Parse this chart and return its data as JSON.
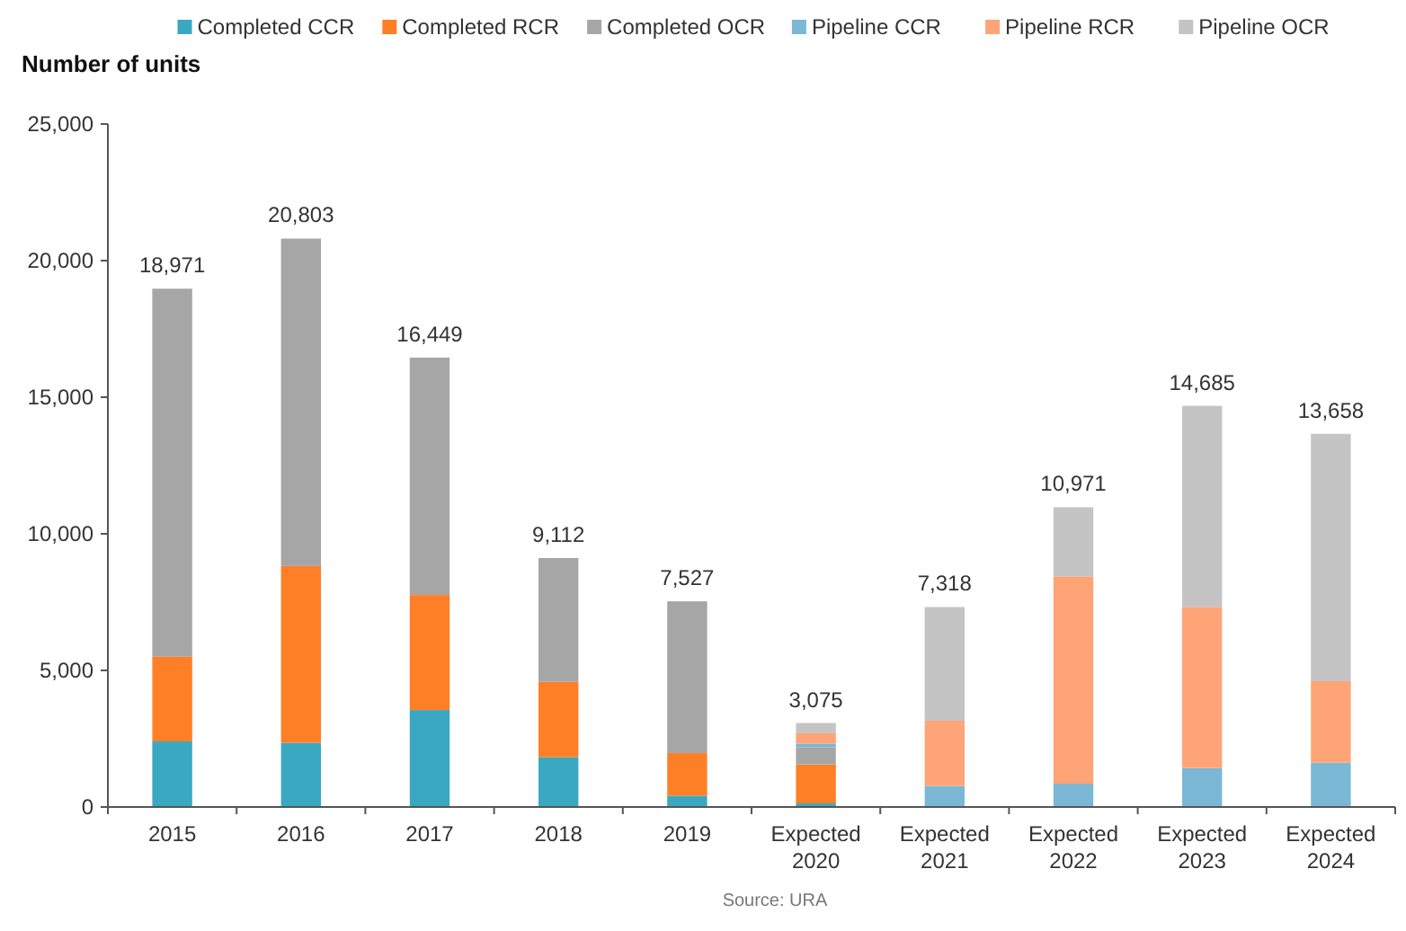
{
  "chart_data": {
    "type": "bar",
    "stacked": true,
    "ylabel": "Number of units",
    "categories": [
      "2015",
      "2016",
      "2017",
      "2018",
      "2019",
      "Expected 2020",
      "Expected 2021",
      "Expected 2022",
      "Expected 2023",
      "Expected 2024"
    ],
    "series": [
      {
        "name": "Completed CCR",
        "color": "#3aa8c1",
        "values": [
          2400,
          2350,
          3550,
          1820,
          415,
          130,
          null,
          null,
          null,
          null
        ]
      },
      {
        "name": "Completed RCR",
        "color": "#ff7f27",
        "values": [
          3100,
          6470,
          4210,
          2765,
          1560,
          1430,
          null,
          null,
          null,
          null
        ]
      },
      {
        "name": "Completed OCR",
        "color": "#a6a6a6",
        "values": [
          13471,
          11986,
          8689,
          4527,
          5553,
          630,
          null,
          null,
          null,
          null
        ]
      },
      {
        "name": "Pipeline CCR",
        "color": "#7ab8d6",
        "values": [
          null,
          null,
          null,
          null,
          null,
          130,
          770,
          855,
          1425,
          1623
        ]
      },
      {
        "name": "Pipeline RCR",
        "color": "#ffa476",
        "values": [
          null,
          null,
          null,
          null,
          null,
          380,
          2390,
          7587,
          5900,
          2983
        ]
      },
      {
        "name": "Pipeline OCR",
        "color": "#c4c4c4",
        "values": [
          null,
          null,
          null,
          null,
          null,
          375,
          4160,
          2529,
          7360,
          9052
        ]
      }
    ],
    "totals": [
      "18,971",
      "20,803",
      "16,449",
      "9,112",
      "7,527",
      "3,075",
      "7,318",
      "10,971",
      "14,685",
      "13,658"
    ],
    "ylim": [
      0,
      25000
    ],
    "yticks": [
      {
        "value": 0,
        "label": "0"
      },
      {
        "value": 5000,
        "label": "5,000"
      },
      {
        "value": 10000,
        "label": "10,000"
      },
      {
        "value": 15000,
        "label": "15,000"
      },
      {
        "value": 20000,
        "label": "20,000"
      },
      {
        "value": 25000,
        "label": "25,000"
      }
    ],
    "legend": "top",
    "grid": false,
    "annotations": [
      "Source: URA"
    ]
  }
}
